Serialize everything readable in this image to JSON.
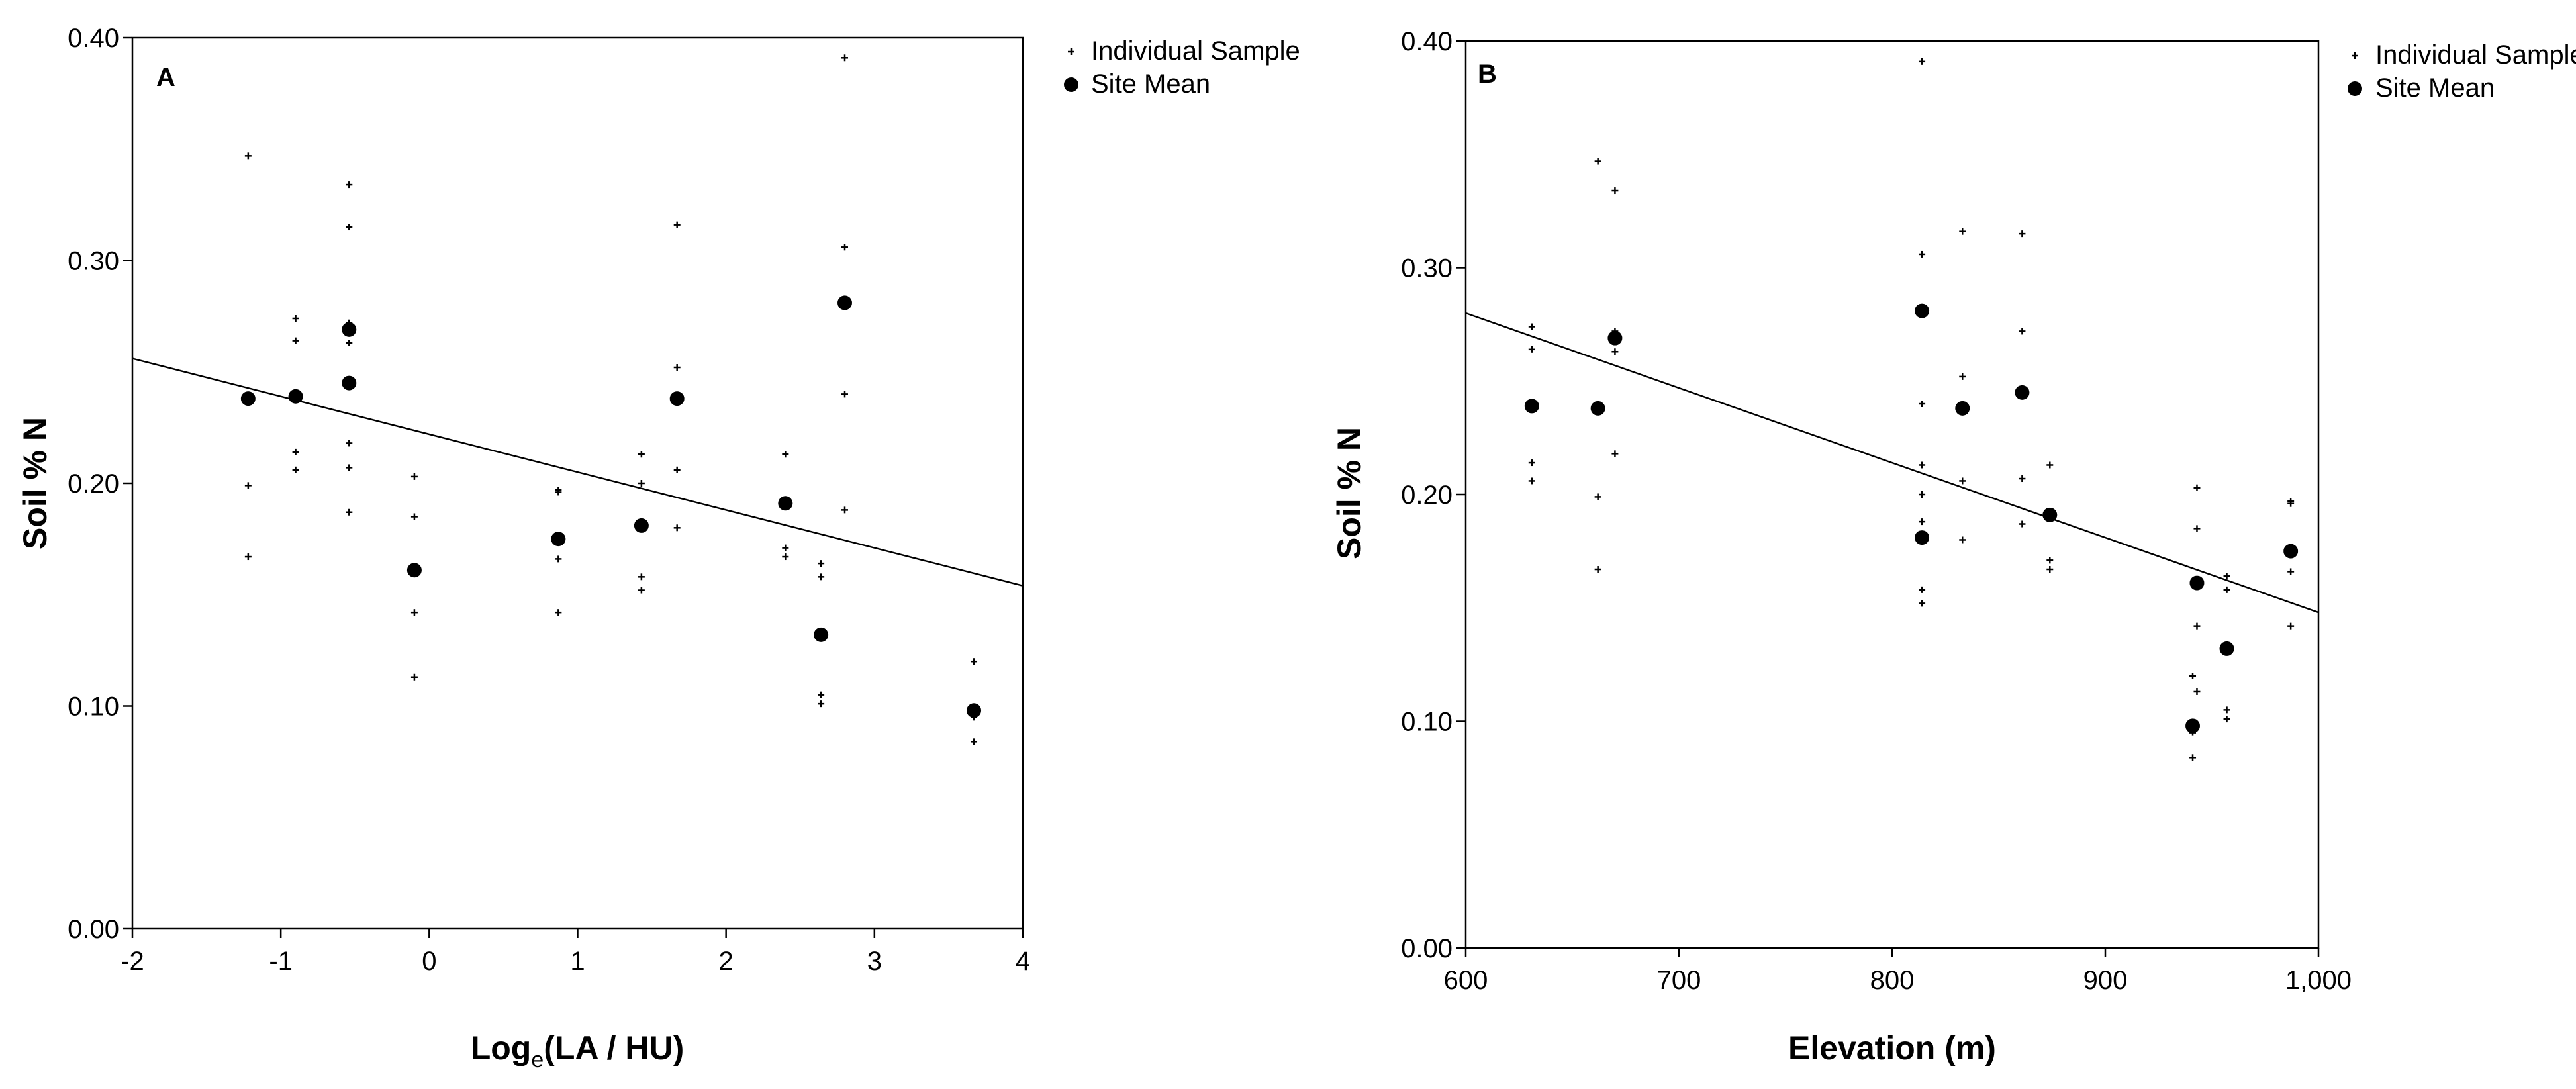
{
  "chart_data": [
    {
      "type": "scatter",
      "panel_label": "A",
      "xlabel": "Log",
      "xlabel_subscript": "e",
      "xlabel_suffix": "(LA / HU)",
      "ylabel": "Soil % N",
      "xlim": [
        -2,
        4
      ],
      "ylim": [
        0,
        0.4
      ],
      "x_ticks": [
        "-2",
        "-1",
        "0",
        "1",
        "2",
        "3",
        "4"
      ],
      "y_ticks": [
        "0.00",
        "0.10",
        "0.20",
        "0.30",
        "0.40"
      ],
      "grid": false,
      "legend": {
        "position": "top-right",
        "labels": [
          "Individual Sample",
          "Site Mean"
        ]
      },
      "series": [
        {
          "name": "Individual Sample",
          "marker": "small-plus",
          "points": [
            [
              -1.22,
              0.347
            ],
            [
              -1.22,
              0.199
            ],
            [
              -1.22,
              0.167
            ],
            [
              -0.9,
              0.274
            ],
            [
              -0.9,
              0.264
            ],
            [
              -0.9,
              0.214
            ],
            [
              -0.9,
              0.206
            ],
            [
              -0.54,
              0.334
            ],
            [
              -0.54,
              0.315
            ],
            [
              -0.54,
              0.272
            ],
            [
              -0.54,
              0.263
            ],
            [
              -0.54,
              0.218
            ],
            [
              -0.54,
              0.207
            ],
            [
              -0.54,
              0.187
            ],
            [
              -0.1,
              0.203
            ],
            [
              -0.1,
              0.185
            ],
            [
              -0.1,
              0.142
            ],
            [
              -0.1,
              0.113
            ],
            [
              0.87,
              0.197
            ],
            [
              0.87,
              0.196
            ],
            [
              0.87,
              0.166
            ],
            [
              0.87,
              0.142
            ],
            [
              1.43,
              0.213
            ],
            [
              1.43,
              0.2
            ],
            [
              1.43,
              0.158
            ],
            [
              1.43,
              0.152
            ],
            [
              1.67,
              0.316
            ],
            [
              1.67,
              0.252
            ],
            [
              1.67,
              0.206
            ],
            [
              1.67,
              0.18
            ],
            [
              2.4,
              0.213
            ],
            [
              2.4,
              0.171
            ],
            [
              2.4,
              0.167
            ],
            [
              2.64,
              0.164
            ],
            [
              2.64,
              0.158
            ],
            [
              2.64,
              0.105
            ],
            [
              2.64,
              0.101
            ],
            [
              2.8,
              0.391
            ],
            [
              2.8,
              0.306
            ],
            [
              2.8,
              0.24
            ],
            [
              2.8,
              0.188
            ],
            [
              3.67,
              0.12
            ],
            [
              3.67,
              0.095
            ],
            [
              3.67,
              0.084
            ]
          ]
        },
        {
          "name": "Site Mean",
          "marker": "filled-circle",
          "points": [
            [
              -1.22,
              0.238
            ],
            [
              -0.9,
              0.239
            ],
            [
              -0.54,
              0.269
            ],
            [
              -0.54,
              0.245
            ],
            [
              -0.1,
              0.161
            ],
            [
              0.87,
              0.175
            ],
            [
              1.43,
              0.181
            ],
            [
              1.67,
              0.238
            ],
            [
              2.4,
              0.191
            ],
            [
              2.64,
              0.132
            ],
            [
              2.8,
              0.281
            ],
            [
              3.67,
              0.098
            ]
          ]
        }
      ],
      "fit_line": [
        [
          -2,
          0.256
        ],
        [
          4,
          0.154
        ]
      ]
    },
    {
      "type": "scatter",
      "panel_label": "B",
      "xlabel": "Elevation (m)",
      "ylabel": "Soil % N",
      "xlim": [
        600,
        1000
      ],
      "ylim": [
        0,
        0.4
      ],
      "x_ticks": [
        "600",
        "700",
        "800",
        "900",
        "1,000"
      ],
      "y_ticks": [
        "0.00",
        "0.10",
        "0.20",
        "0.30",
        "0.40"
      ],
      "grid": false,
      "legend": {
        "position": "top-right",
        "labels": [
          "Individual Sample",
          "Site Mean"
        ]
      },
      "series": [
        {
          "name": "Individual Sample",
          "marker": "small-plus",
          "points": [
            [
              631,
              0.274
            ],
            [
              631,
              0.264
            ],
            [
              631,
              0.214
            ],
            [
              631,
              0.206
            ],
            [
              662,
              0.347
            ],
            [
              662,
              0.199
            ],
            [
              662,
              0.167
            ],
            [
              670,
              0.334
            ],
            [
              670,
              0.272
            ],
            [
              670,
              0.263
            ],
            [
              670,
              0.218
            ],
            [
              814,
              0.391
            ],
            [
              814,
              0.306
            ],
            [
              814,
              0.24
            ],
            [
              814,
              0.213
            ],
            [
              814,
              0.2
            ],
            [
              814,
              0.188
            ],
            [
              814,
              0.158
            ],
            [
              814,
              0.152
            ],
            [
              833,
              0.316
            ],
            [
              833,
              0.252
            ],
            [
              833,
              0.206
            ],
            [
              833,
              0.18
            ],
            [
              861,
              0.315
            ],
            [
              861,
              0.272
            ],
            [
              861,
              0.207
            ],
            [
              861,
              0.187
            ],
            [
              874,
              0.213
            ],
            [
              874,
              0.171
            ],
            [
              874,
              0.167
            ],
            [
              941,
              0.12
            ],
            [
              941,
              0.095
            ],
            [
              941,
              0.084
            ],
            [
              943,
              0.203
            ],
            [
              943,
              0.185
            ],
            [
              943,
              0.142
            ],
            [
              943,
              0.113
            ],
            [
              957,
              0.164
            ],
            [
              957,
              0.158
            ],
            [
              957,
              0.105
            ],
            [
              957,
              0.101
            ],
            [
              987,
              0.197
            ],
            [
              987,
              0.196
            ],
            [
              987,
              0.166
            ],
            [
              987,
              0.142
            ]
          ]
        },
        {
          "name": "Site Mean",
          "marker": "filled-circle",
          "points": [
            [
              631,
              0.239
            ],
            [
              662,
              0.238
            ],
            [
              670,
              0.269
            ],
            [
              814,
              0.281
            ],
            [
              814,
              0.181
            ],
            [
              833,
              0.238
            ],
            [
              861,
              0.245
            ],
            [
              874,
              0.191
            ],
            [
              941,
              0.098
            ],
            [
              943,
              0.161
            ],
            [
              957,
              0.132
            ],
            [
              987,
              0.175
            ]
          ]
        }
      ],
      "fit_line": [
        [
          600,
          0.28
        ],
        [
          1000,
          0.148
        ]
      ]
    }
  ]
}
